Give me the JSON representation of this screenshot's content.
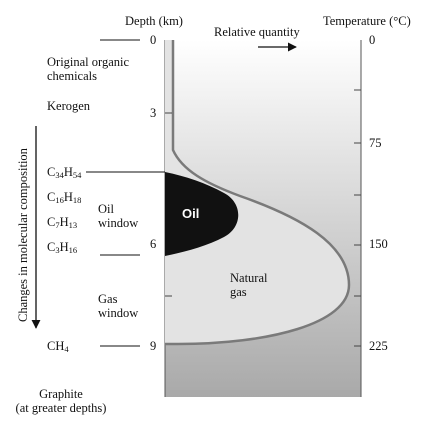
{
  "headers": {
    "depth": "Depth (km)",
    "relative_quantity": "Relative quantity",
    "temperature": "Temperature (°C)"
  },
  "depth_ticks": [
    "0",
    "3",
    "6",
    "9"
  ],
  "temperature_ticks": [
    "0",
    "75",
    "150",
    "225"
  ],
  "stages": {
    "original_line1": "Original organic",
    "original_line2": "chemicals",
    "kerogen": "Kerogen",
    "graphite_line1": "Graphite",
    "graphite_line2": "(at greater depths)"
  },
  "molecules": [
    {
      "base1": "C",
      "sub1": "34",
      "base2": "H",
      "sub2": "54"
    },
    {
      "base1": "C",
      "sub1": "16",
      "base2": "H",
      "sub2": "18"
    },
    {
      "base1": "C",
      "sub1": "7",
      "base2": "H",
      "sub2": "13"
    },
    {
      "base1": "C",
      "sub1": "3",
      "base2": "H",
      "sub2": "16"
    },
    {
      "base1": "CH",
      "sub1": "4",
      "base2": "",
      "sub2": ""
    }
  ],
  "windows": {
    "oil_line1": "Oil",
    "oil_line2": "window",
    "gas_line1": "Gas",
    "gas_line2": "window"
  },
  "regions": {
    "oil": "Oil",
    "gas_line1": "Natural",
    "gas_line2": "gas"
  },
  "side_label": "Changes in molecular composition",
  "colors": {
    "gradient_top": "#ffffff",
    "gradient_bottom": "#a9a9a9",
    "oil": "#111111",
    "gas": "#e3e3e3",
    "curve": "#7a7a7a"
  }
}
